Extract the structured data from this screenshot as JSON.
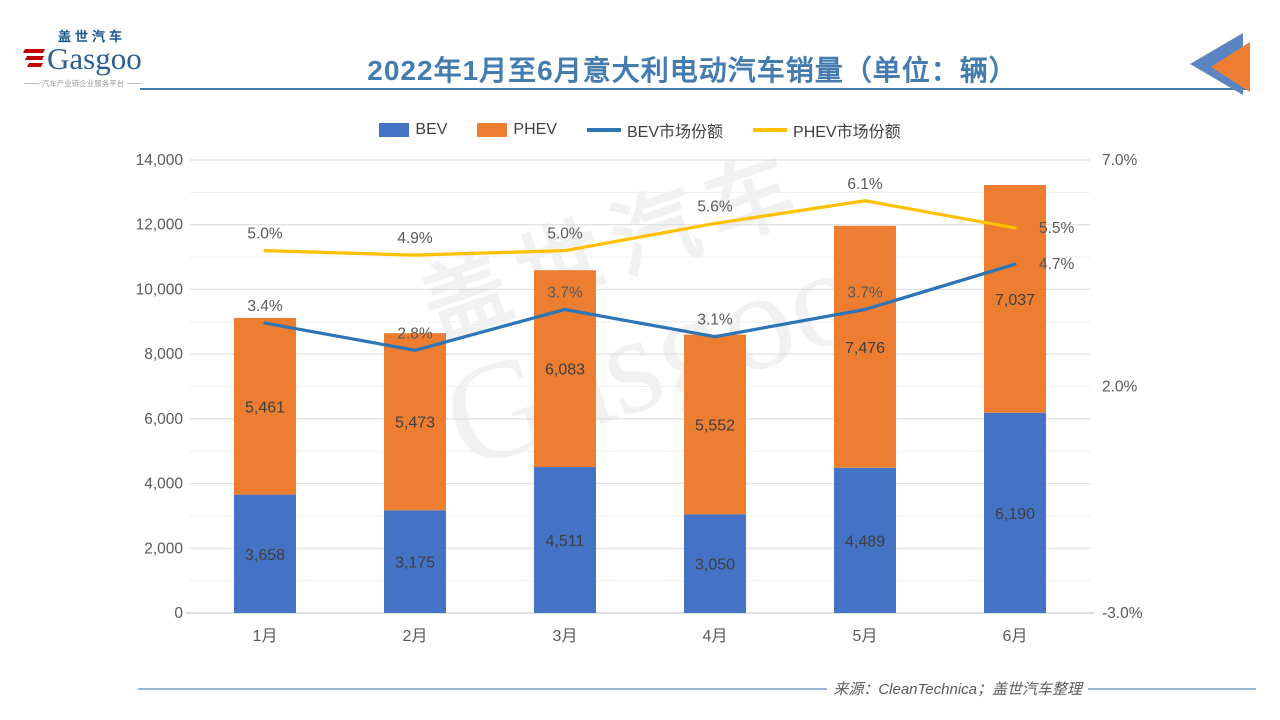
{
  "header": {
    "logo": {
      "cn": "盖世汽车",
      "en": "Gasgoo",
      "tagline": "汽车产业链企业服务平台"
    },
    "title": "2022年1月至6月意大利电动汽车销量（单位：辆）",
    "title_color": "#447CB0"
  },
  "legend": [
    {
      "label": "BEV",
      "type": "box",
      "color": "#4472C4"
    },
    {
      "label": "PHEV",
      "type": "box",
      "color": "#ED7D31"
    },
    {
      "label": "BEV市场份额",
      "type": "line",
      "color": "#2E75B6"
    },
    {
      "label": "PHEV市场份额",
      "type": "line",
      "color": "#FFC000"
    }
  ],
  "chart_data": {
    "type": "combo: stacked bar + line",
    "categories": [
      "1月",
      "2月",
      "3月",
      "4月",
      "5月",
      "6月"
    ],
    "bar_series": [
      {
        "name": "BEV",
        "color": "#4472C4",
        "values": [
          3658,
          3175,
          4511,
          3050,
          4489,
          6190
        ]
      },
      {
        "name": "PHEV",
        "color": "#ED7D31",
        "values": [
          5461,
          5473,
          6083,
          5552,
          7476,
          7037
        ]
      }
    ],
    "line_series": [
      {
        "name": "BEV市场份额",
        "color": "#2E75B6",
        "unit": "%",
        "values": [
          3.4,
          2.8,
          3.7,
          3.1,
          3.7,
          4.7
        ]
      },
      {
        "name": "PHEV市场份额",
        "color": "#FFC000",
        "unit": "%",
        "values": [
          5.0,
          4.9,
          5.0,
          5.6,
          6.1,
          5.5
        ]
      }
    ],
    "left_axis": {
      "min": 0,
      "max": 14000,
      "tick_step": 2000,
      "gridline_step": 1000
    },
    "right_axis": {
      "min": -3.0,
      "max": 7.0,
      "tick_values": [
        7.0,
        2.0,
        -3.0
      ],
      "tick_labels": [
        "7.0%",
        "2.0%",
        "-3.0%"
      ]
    },
    "grid": true,
    "legend_position": "top",
    "label_color": "#595959",
    "bar_label_color": "#3f3f3f"
  },
  "watermark": {
    "line1": "盖世汽车",
    "line2": "Gasgoo"
  },
  "footer": {
    "source": "来源：CleanTechnica；盖世汽车整理"
  }
}
